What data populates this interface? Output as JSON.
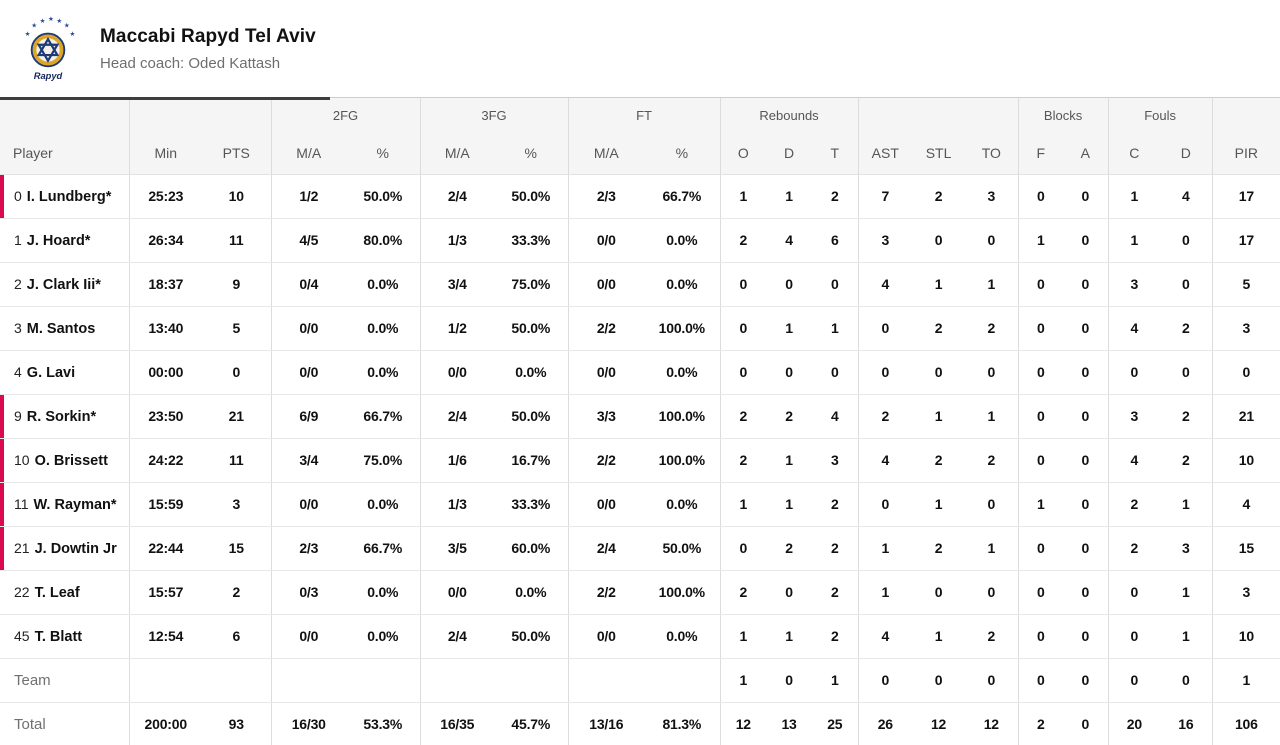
{
  "header": {
    "team_name": "Maccabi Rapyd Tel Aviv",
    "coach_line": "Head coach: Oded Kattash",
    "logo_label": "Rapyd"
  },
  "colors": {
    "on_court_accent": "#db0a4e",
    "header_bg": "#f5f5f5",
    "logo_navy": "#1d3a7a",
    "logo_gold": "#dca628"
  },
  "table": {
    "group_headers": [
      {
        "label": "",
        "span": 1
      },
      {
        "label": "",
        "span": 2
      },
      {
        "label": "2FG",
        "span": 2
      },
      {
        "label": "3FG",
        "span": 2
      },
      {
        "label": "FT",
        "span": 2
      },
      {
        "label": "Rebounds",
        "span": 3
      },
      {
        "label": "",
        "span": 3
      },
      {
        "label": "Blocks",
        "span": 2
      },
      {
        "label": "Fouls",
        "span": 2
      },
      {
        "label": "",
        "span": 1
      }
    ],
    "columns": [
      "Player",
      "Min",
      "PTS",
      "M/A",
      "%",
      "M/A",
      "%",
      "M/A",
      "%",
      "O",
      "D",
      "T",
      "AST",
      "STL",
      "TO",
      "F",
      "A",
      "C",
      "D",
      "PIR"
    ],
    "rows": [
      {
        "number": "0",
        "name": "I. Lundberg*",
        "on_court": true,
        "cells": [
          "25:23",
          "10",
          "1/2",
          "50.0%",
          "2/4",
          "50.0%",
          "2/3",
          "66.7%",
          "1",
          "1",
          "2",
          "7",
          "2",
          "3",
          "0",
          "0",
          "1",
          "4",
          "17"
        ]
      },
      {
        "number": "1",
        "name": "J. Hoard*",
        "on_court": false,
        "cells": [
          "26:34",
          "11",
          "4/5",
          "80.0%",
          "1/3",
          "33.3%",
          "0/0",
          "0.0%",
          "2",
          "4",
          "6",
          "3",
          "0",
          "0",
          "1",
          "0",
          "1",
          "0",
          "17"
        ]
      },
      {
        "number": "2",
        "name": "J. Clark Iii*",
        "on_court": false,
        "cells": [
          "18:37",
          "9",
          "0/4",
          "0.0%",
          "3/4",
          "75.0%",
          "0/0",
          "0.0%",
          "0",
          "0",
          "0",
          "4",
          "1",
          "1",
          "0",
          "0",
          "3",
          "0",
          "5"
        ]
      },
      {
        "number": "3",
        "name": "M. Santos",
        "on_court": false,
        "cells": [
          "13:40",
          "5",
          "0/0",
          "0.0%",
          "1/2",
          "50.0%",
          "2/2",
          "100.0%",
          "0",
          "1",
          "1",
          "0",
          "2",
          "2",
          "0",
          "0",
          "4",
          "2",
          "3"
        ]
      },
      {
        "number": "4",
        "name": "G. Lavi",
        "on_court": false,
        "cells": [
          "00:00",
          "0",
          "0/0",
          "0.0%",
          "0/0",
          "0.0%",
          "0/0",
          "0.0%",
          "0",
          "0",
          "0",
          "0",
          "0",
          "0",
          "0",
          "0",
          "0",
          "0",
          "0"
        ]
      },
      {
        "number": "9",
        "name": "R. Sorkin*",
        "on_court": true,
        "cells": [
          "23:50",
          "21",
          "6/9",
          "66.7%",
          "2/4",
          "50.0%",
          "3/3",
          "100.0%",
          "2",
          "2",
          "4",
          "2",
          "1",
          "1",
          "0",
          "0",
          "3",
          "2",
          "21"
        ]
      },
      {
        "number": "10",
        "name": "O. Brissett",
        "on_court": true,
        "cells": [
          "24:22",
          "11",
          "3/4",
          "75.0%",
          "1/6",
          "16.7%",
          "2/2",
          "100.0%",
          "2",
          "1",
          "3",
          "4",
          "2",
          "2",
          "0",
          "0",
          "4",
          "2",
          "10"
        ]
      },
      {
        "number": "11",
        "name": "W. Rayman*",
        "on_court": true,
        "cells": [
          "15:59",
          "3",
          "0/0",
          "0.0%",
          "1/3",
          "33.3%",
          "0/0",
          "0.0%",
          "1",
          "1",
          "2",
          "0",
          "1",
          "0",
          "1",
          "0",
          "2",
          "1",
          "4"
        ]
      },
      {
        "number": "21",
        "name": "J. Dowtin Jr",
        "on_court": true,
        "cells": [
          "22:44",
          "15",
          "2/3",
          "66.7%",
          "3/5",
          "60.0%",
          "2/4",
          "50.0%",
          "0",
          "2",
          "2",
          "1",
          "2",
          "1",
          "0",
          "0",
          "2",
          "3",
          "15"
        ]
      },
      {
        "number": "22",
        "name": "T. Leaf",
        "on_court": false,
        "cells": [
          "15:57",
          "2",
          "0/3",
          "0.0%",
          "0/0",
          "0.0%",
          "2/2",
          "100.0%",
          "2",
          "0",
          "2",
          "1",
          "0",
          "0",
          "0",
          "0",
          "0",
          "1",
          "3"
        ]
      },
      {
        "number": "45",
        "name": "T. Blatt",
        "on_court": false,
        "cells": [
          "12:54",
          "6",
          "0/0",
          "0.0%",
          "2/4",
          "50.0%",
          "0/0",
          "0.0%",
          "1",
          "1",
          "2",
          "4",
          "1",
          "2",
          "0",
          "0",
          "0",
          "1",
          "10"
        ]
      }
    ],
    "team_row": {
      "label": "Team",
      "cells": [
        "",
        "",
        "",
        "",
        "",
        "",
        "",
        "",
        "1",
        "0",
        "1",
        "0",
        "0",
        "0",
        "0",
        "0",
        "0",
        "0",
        "1"
      ]
    },
    "total_row": {
      "label": "Total",
      "cells": [
        "200:00",
        "93",
        "16/30",
        "53.3%",
        "16/35",
        "45.7%",
        "13/16",
        "81.3%",
        "12",
        "13",
        "25",
        "26",
        "12",
        "12",
        "2",
        "0",
        "20",
        "16",
        "106"
      ]
    }
  }
}
